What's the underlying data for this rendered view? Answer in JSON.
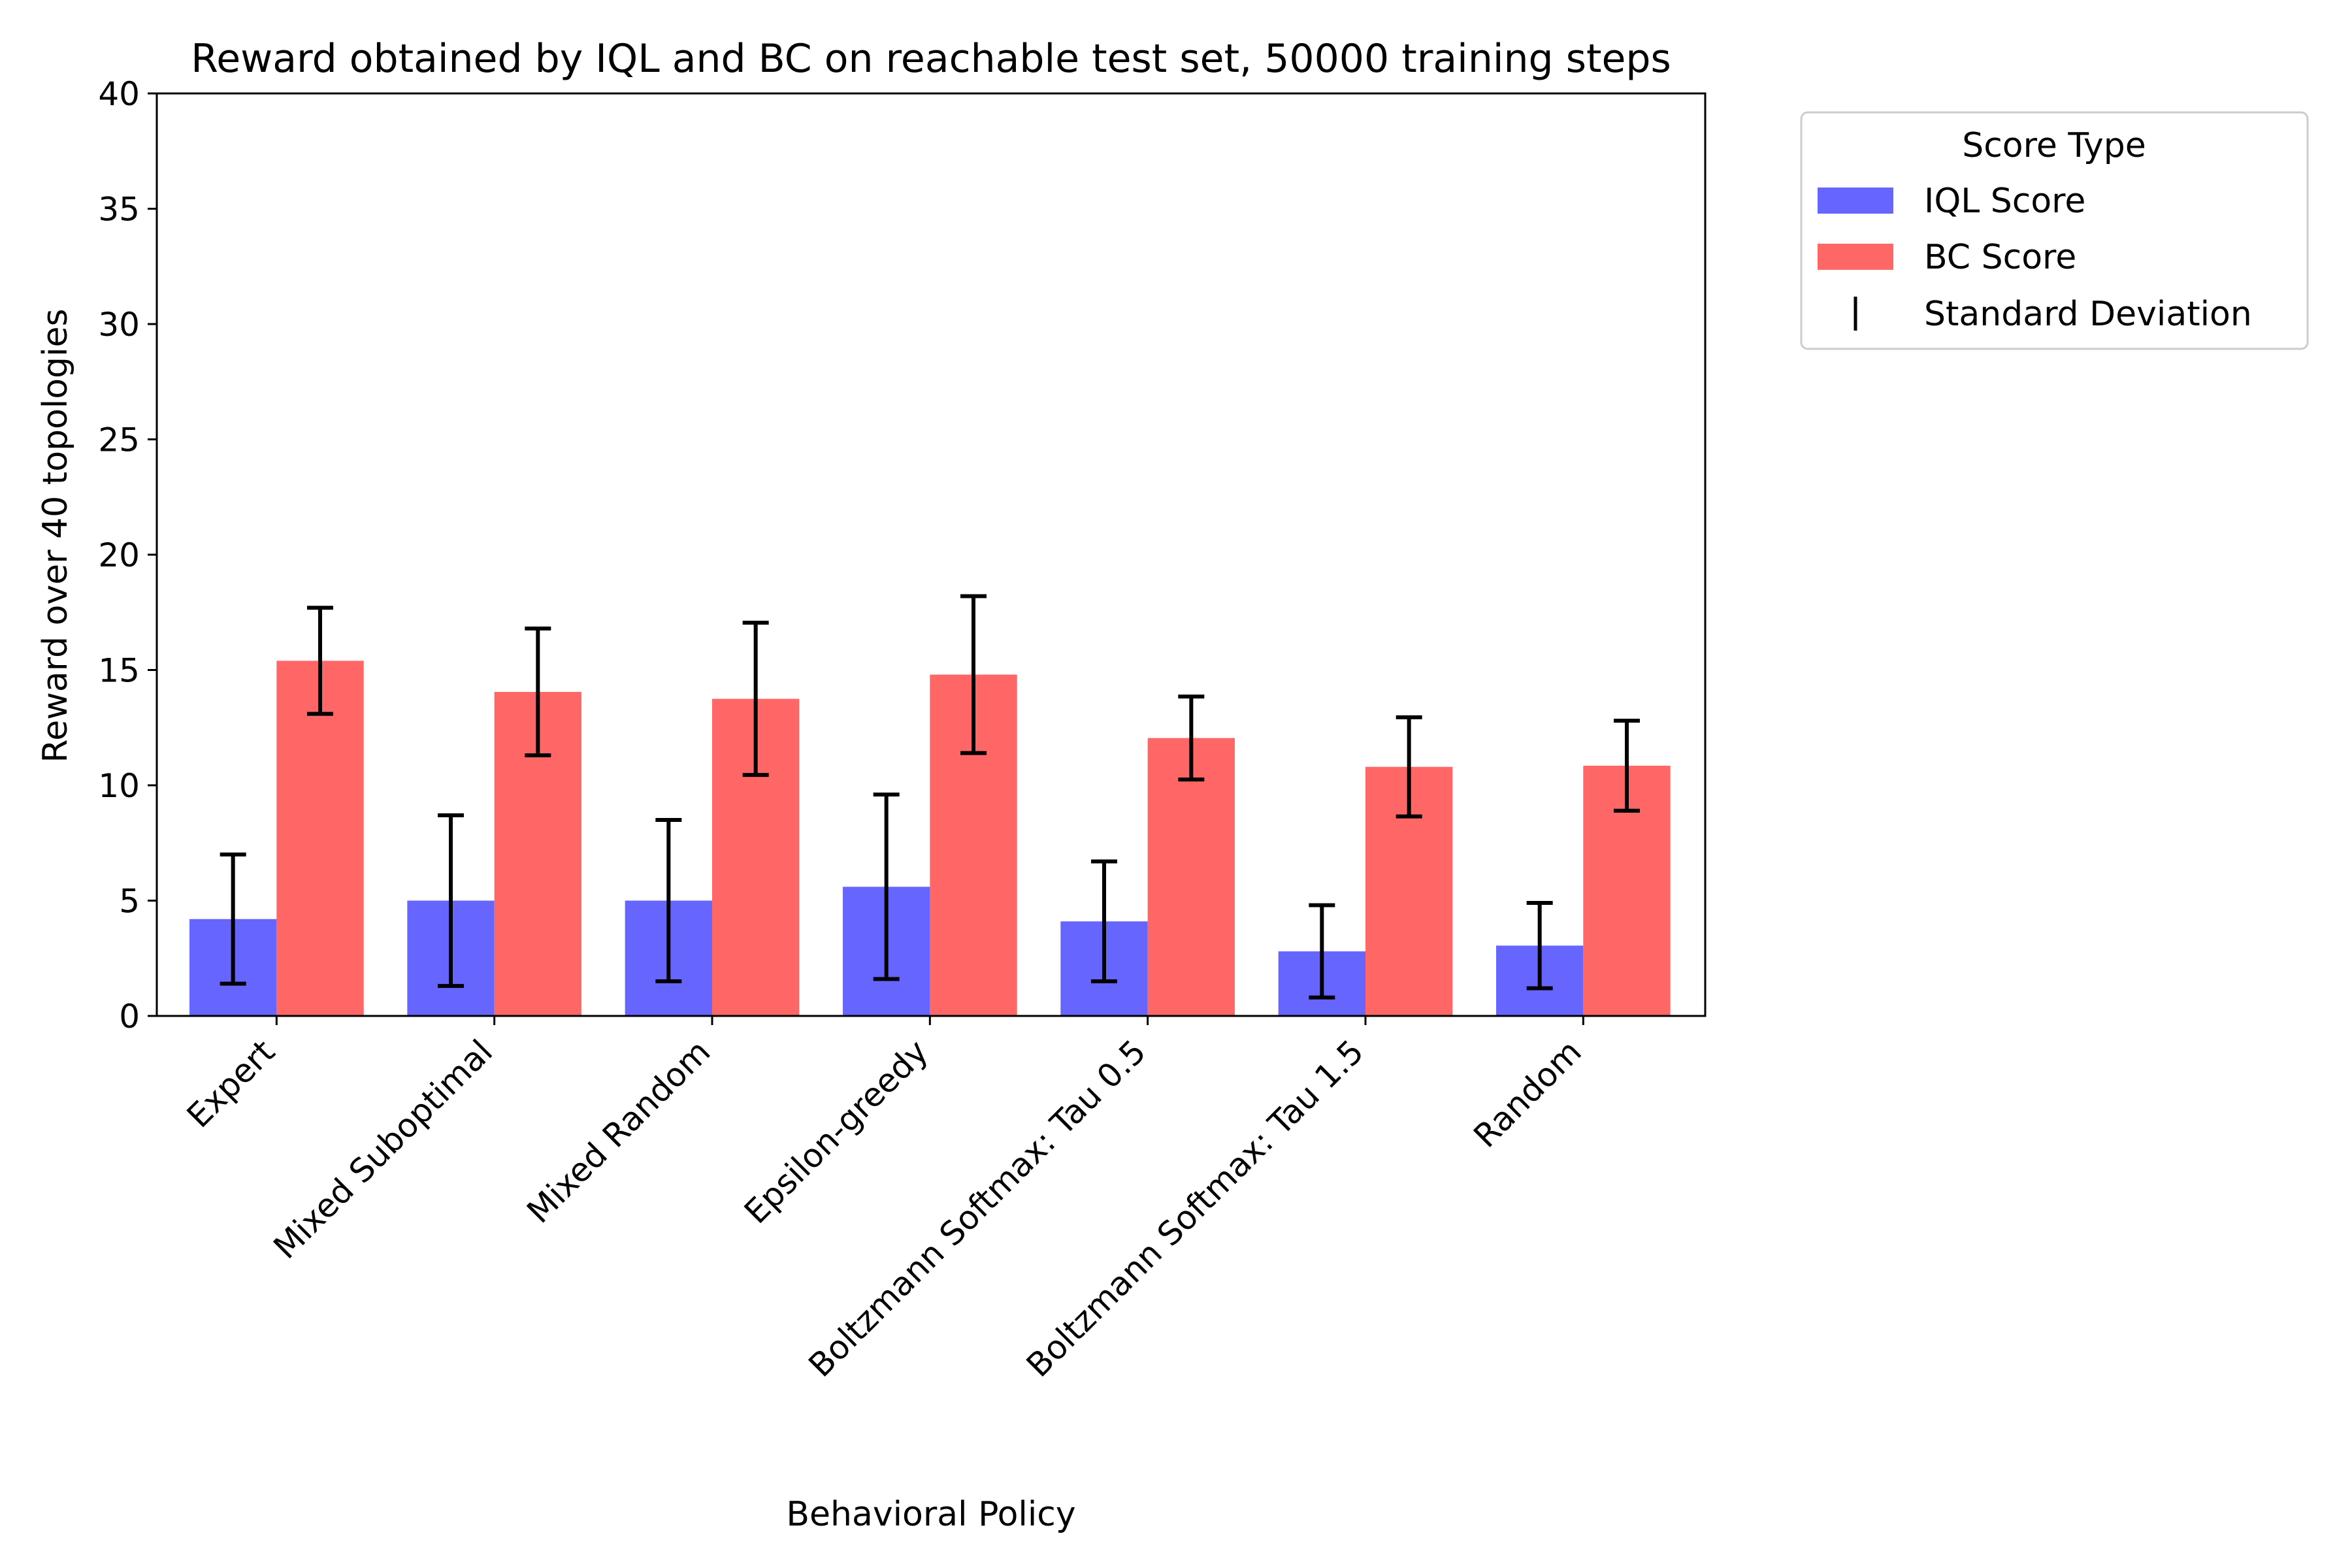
{
  "chart_data": {
    "type": "bar",
    "title": "Reward obtained by IQL and BC on reachable test set, 50000 training steps",
    "xlabel": "Behavioral Policy",
    "ylabel": "Reward over 40 topologies",
    "ylim": [
      0,
      40
    ],
    "yticks": [
      "0",
      "5",
      "10",
      "15",
      "20",
      "25",
      "30",
      "35",
      "40"
    ],
    "grid": false,
    "legend_position": "outside right",
    "legend_title": "Score Type",
    "categories": [
      "Expert",
      "Mixed Suboptimal",
      "Mixed Random",
      "Epsilon-greedy",
      "Boltzmann Softmax: Tau 0.5",
      "Boltzmann Softmax: Tau 1.5",
      "Random"
    ],
    "series": [
      {
        "name": "IQL Score",
        "color": "#6666ff",
        "values": [
          4.2,
          5.0,
          5.0,
          5.6,
          4.1,
          2.8,
          3.05
        ],
        "std": [
          2.8,
          3.7,
          3.5,
          4.0,
          2.6,
          2.0,
          1.85
        ]
      },
      {
        "name": "BC Score",
        "color": "#ff6666",
        "values": [
          15.4,
          14.05,
          13.75,
          14.8,
          12.05,
          10.8,
          10.85
        ],
        "std": [
          2.3,
          2.75,
          3.3,
          3.4,
          1.8,
          2.15,
          1.95
        ]
      }
    ],
    "error_legend_label": "Standard Deviation"
  }
}
